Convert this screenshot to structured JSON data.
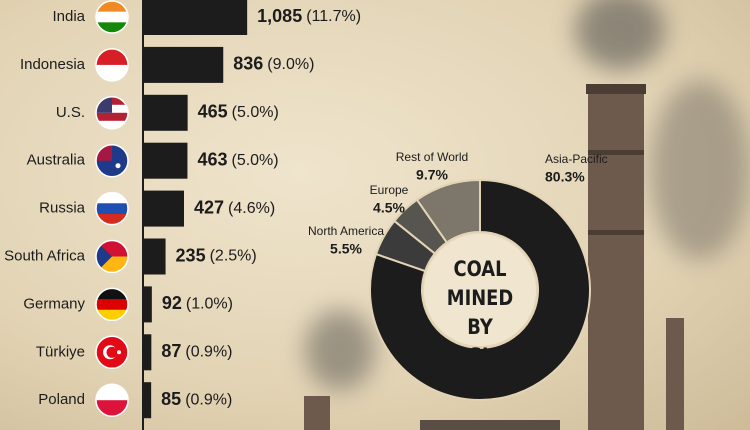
{
  "chart_data": [
    {
      "type": "bar",
      "categories": [
        "India",
        "Indonesia",
        "U.S.",
        "Australia",
        "Russia",
        "South Africa",
        "Germany",
        "Türkiye",
        "Poland"
      ],
      "values": [
        1085,
        836,
        465,
        463,
        427,
        235,
        92,
        87,
        85
      ],
      "value_labels": [
        "1,085",
        "836",
        "465",
        "463",
        "427",
        "235",
        "92",
        "87",
        "85"
      ],
      "shares": [
        11.7,
        9.0,
        5.0,
        5.0,
        4.6,
        2.5,
        1.0,
        0.9,
        0.9
      ],
      "share_labels": [
        "(11.7%)",
        "(9.0%)",
        "(5.0%)",
        "(5.0%)",
        "(4.6%)",
        "(2.5%)",
        "(1.0%)",
        "(0.9%)",
        "(0.9%)"
      ],
      "color": "#1c1c1c"
    },
    {
      "type": "donut",
      "title": "COAL MINED BY REGION",
      "categories": [
        "Asia-Pacific",
        "North America",
        "Europe",
        "Rest of World"
      ],
      "values": [
        80.3,
        5.5,
        4.5,
        9.7
      ],
      "value_labels": [
        "80.3%",
        "5.5%",
        "4.5%",
        "9.7%"
      ],
      "colors": [
        "#1c1c1c",
        "#3b3b3b",
        "#575550",
        "#7d776b"
      ]
    }
  ]
}
